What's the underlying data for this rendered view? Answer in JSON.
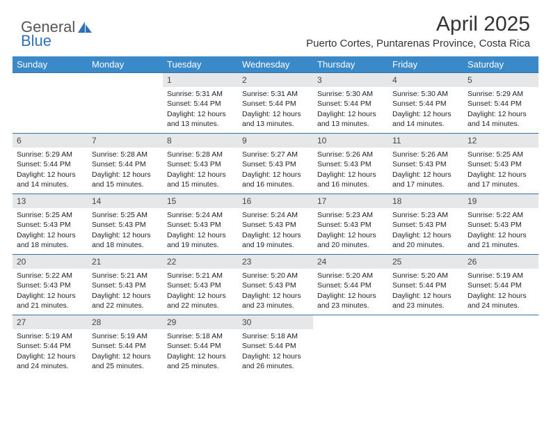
{
  "brand": {
    "part1": "General",
    "part2": "Blue"
  },
  "title": "April 2025",
  "location": "Puerto Cortes, Puntarenas Province, Costa Rica",
  "colors": {
    "header_bg": "#3a8ac9",
    "header_text": "#ffffff",
    "datebar_bg": "#e5e7e9",
    "rule": "#3a6f9f",
    "brand_blue": "#2d72b8"
  },
  "day_names": [
    "Sunday",
    "Monday",
    "Tuesday",
    "Wednesday",
    "Thursday",
    "Friday",
    "Saturday"
  ],
  "weeks": [
    [
      null,
      null,
      {
        "d": "1",
        "sr": "Sunrise: 5:31 AM",
        "ss": "Sunset: 5:44 PM",
        "dl1": "Daylight: 12 hours",
        "dl2": "and 13 minutes."
      },
      {
        "d": "2",
        "sr": "Sunrise: 5:31 AM",
        "ss": "Sunset: 5:44 PM",
        "dl1": "Daylight: 12 hours",
        "dl2": "and 13 minutes."
      },
      {
        "d": "3",
        "sr": "Sunrise: 5:30 AM",
        "ss": "Sunset: 5:44 PM",
        "dl1": "Daylight: 12 hours",
        "dl2": "and 13 minutes."
      },
      {
        "d": "4",
        "sr": "Sunrise: 5:30 AM",
        "ss": "Sunset: 5:44 PM",
        "dl1": "Daylight: 12 hours",
        "dl2": "and 14 minutes."
      },
      {
        "d": "5",
        "sr": "Sunrise: 5:29 AM",
        "ss": "Sunset: 5:44 PM",
        "dl1": "Daylight: 12 hours",
        "dl2": "and 14 minutes."
      }
    ],
    [
      {
        "d": "6",
        "sr": "Sunrise: 5:29 AM",
        "ss": "Sunset: 5:44 PM",
        "dl1": "Daylight: 12 hours",
        "dl2": "and 14 minutes."
      },
      {
        "d": "7",
        "sr": "Sunrise: 5:28 AM",
        "ss": "Sunset: 5:44 PM",
        "dl1": "Daylight: 12 hours",
        "dl2": "and 15 minutes."
      },
      {
        "d": "8",
        "sr": "Sunrise: 5:28 AM",
        "ss": "Sunset: 5:43 PM",
        "dl1": "Daylight: 12 hours",
        "dl2": "and 15 minutes."
      },
      {
        "d": "9",
        "sr": "Sunrise: 5:27 AM",
        "ss": "Sunset: 5:43 PM",
        "dl1": "Daylight: 12 hours",
        "dl2": "and 16 minutes."
      },
      {
        "d": "10",
        "sr": "Sunrise: 5:26 AM",
        "ss": "Sunset: 5:43 PM",
        "dl1": "Daylight: 12 hours",
        "dl2": "and 16 minutes."
      },
      {
        "d": "11",
        "sr": "Sunrise: 5:26 AM",
        "ss": "Sunset: 5:43 PM",
        "dl1": "Daylight: 12 hours",
        "dl2": "and 17 minutes."
      },
      {
        "d": "12",
        "sr": "Sunrise: 5:25 AM",
        "ss": "Sunset: 5:43 PM",
        "dl1": "Daylight: 12 hours",
        "dl2": "and 17 minutes."
      }
    ],
    [
      {
        "d": "13",
        "sr": "Sunrise: 5:25 AM",
        "ss": "Sunset: 5:43 PM",
        "dl1": "Daylight: 12 hours",
        "dl2": "and 18 minutes."
      },
      {
        "d": "14",
        "sr": "Sunrise: 5:25 AM",
        "ss": "Sunset: 5:43 PM",
        "dl1": "Daylight: 12 hours",
        "dl2": "and 18 minutes."
      },
      {
        "d": "15",
        "sr": "Sunrise: 5:24 AM",
        "ss": "Sunset: 5:43 PM",
        "dl1": "Daylight: 12 hours",
        "dl2": "and 19 minutes."
      },
      {
        "d": "16",
        "sr": "Sunrise: 5:24 AM",
        "ss": "Sunset: 5:43 PM",
        "dl1": "Daylight: 12 hours",
        "dl2": "and 19 minutes."
      },
      {
        "d": "17",
        "sr": "Sunrise: 5:23 AM",
        "ss": "Sunset: 5:43 PM",
        "dl1": "Daylight: 12 hours",
        "dl2": "and 20 minutes."
      },
      {
        "d": "18",
        "sr": "Sunrise: 5:23 AM",
        "ss": "Sunset: 5:43 PM",
        "dl1": "Daylight: 12 hours",
        "dl2": "and 20 minutes."
      },
      {
        "d": "19",
        "sr": "Sunrise: 5:22 AM",
        "ss": "Sunset: 5:43 PM",
        "dl1": "Daylight: 12 hours",
        "dl2": "and 21 minutes."
      }
    ],
    [
      {
        "d": "20",
        "sr": "Sunrise: 5:22 AM",
        "ss": "Sunset: 5:43 PM",
        "dl1": "Daylight: 12 hours",
        "dl2": "and 21 minutes."
      },
      {
        "d": "21",
        "sr": "Sunrise: 5:21 AM",
        "ss": "Sunset: 5:43 PM",
        "dl1": "Daylight: 12 hours",
        "dl2": "and 22 minutes."
      },
      {
        "d": "22",
        "sr": "Sunrise: 5:21 AM",
        "ss": "Sunset: 5:43 PM",
        "dl1": "Daylight: 12 hours",
        "dl2": "and 22 minutes."
      },
      {
        "d": "23",
        "sr": "Sunrise: 5:20 AM",
        "ss": "Sunset: 5:43 PM",
        "dl1": "Daylight: 12 hours",
        "dl2": "and 23 minutes."
      },
      {
        "d": "24",
        "sr": "Sunrise: 5:20 AM",
        "ss": "Sunset: 5:44 PM",
        "dl1": "Daylight: 12 hours",
        "dl2": "and 23 minutes."
      },
      {
        "d": "25",
        "sr": "Sunrise: 5:20 AM",
        "ss": "Sunset: 5:44 PM",
        "dl1": "Daylight: 12 hours",
        "dl2": "and 23 minutes."
      },
      {
        "d": "26",
        "sr": "Sunrise: 5:19 AM",
        "ss": "Sunset: 5:44 PM",
        "dl1": "Daylight: 12 hours",
        "dl2": "and 24 minutes."
      }
    ],
    [
      {
        "d": "27",
        "sr": "Sunrise: 5:19 AM",
        "ss": "Sunset: 5:44 PM",
        "dl1": "Daylight: 12 hours",
        "dl2": "and 24 minutes."
      },
      {
        "d": "28",
        "sr": "Sunrise: 5:19 AM",
        "ss": "Sunset: 5:44 PM",
        "dl1": "Daylight: 12 hours",
        "dl2": "and 25 minutes."
      },
      {
        "d": "29",
        "sr": "Sunrise: 5:18 AM",
        "ss": "Sunset: 5:44 PM",
        "dl1": "Daylight: 12 hours",
        "dl2": "and 25 minutes."
      },
      {
        "d": "30",
        "sr": "Sunrise: 5:18 AM",
        "ss": "Sunset: 5:44 PM",
        "dl1": "Daylight: 12 hours",
        "dl2": "and 26 minutes."
      },
      null,
      null,
      null
    ]
  ]
}
